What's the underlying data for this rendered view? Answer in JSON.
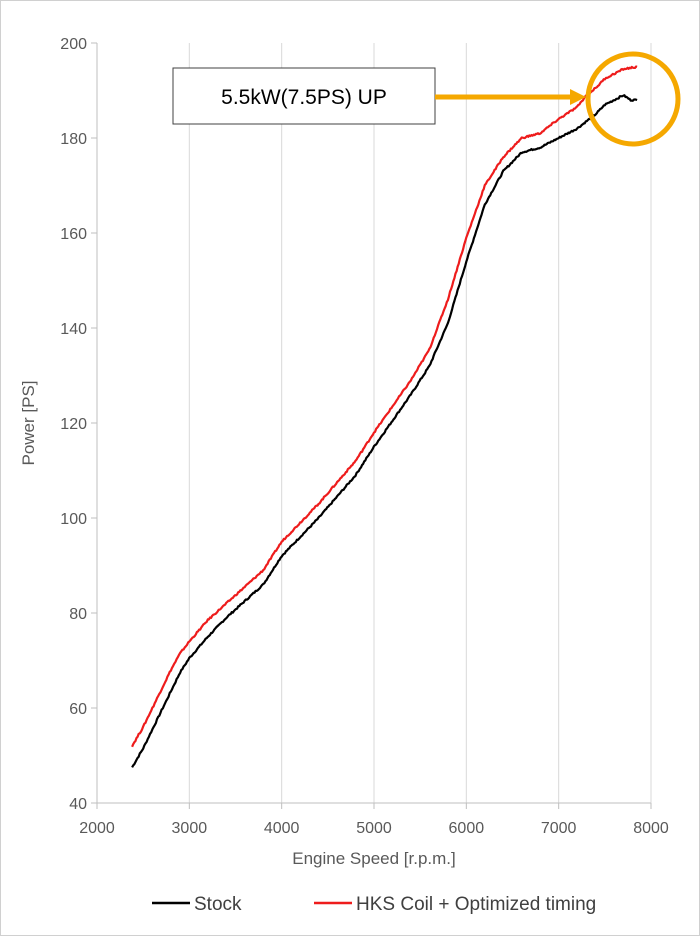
{
  "chart_data": {
    "type": "line",
    "xlabel": "Engine Speed [r.p.m.]",
    "ylabel": "Power [PS]",
    "xlim": [
      2000,
      8000
    ],
    "ylim": [
      40,
      200
    ],
    "x_ticks": [
      2000,
      3000,
      4000,
      5000,
      6000,
      7000,
      8000
    ],
    "y_ticks": [
      40,
      60,
      80,
      100,
      120,
      140,
      160,
      180,
      200
    ],
    "grid": "vertical",
    "legend_position": "bottom",
    "annotation": "5.5kW(7.5PS) UP",
    "series": [
      {
        "name": "Stock",
        "color": "#000000",
        "points": [
          [
            2380,
            47.5
          ],
          [
            2500,
            51.5
          ],
          [
            2600,
            55.5
          ],
          [
            2700,
            59.5
          ],
          [
            2800,
            63.5
          ],
          [
            2900,
            67.5
          ],
          [
            3000,
            70.5
          ],
          [
            3200,
            75.0
          ],
          [
            3400,
            79.0
          ],
          [
            3600,
            82.5
          ],
          [
            3800,
            86.0
          ],
          [
            4000,
            92.0
          ],
          [
            4200,
            96.0
          ],
          [
            4400,
            100.0
          ],
          [
            4600,
            104.5
          ],
          [
            4800,
            109.0
          ],
          [
            5000,
            115.0
          ],
          [
            5200,
            120.5
          ],
          [
            5400,
            126.0
          ],
          [
            5600,
            132.0
          ],
          [
            5800,
            141.0
          ],
          [
            6000,
            154.0
          ],
          [
            6200,
            166.0
          ],
          [
            6400,
            173.0
          ],
          [
            6600,
            177.0
          ],
          [
            6800,
            178.0
          ],
          [
            7000,
            180.0
          ],
          [
            7200,
            182.0
          ],
          [
            7400,
            185.0
          ],
          [
            7500,
            187.0
          ],
          [
            7600,
            188.0
          ],
          [
            7700,
            189.0
          ],
          [
            7780,
            188.0
          ],
          [
            7850,
            188.0
          ]
        ]
      },
      {
        "name": "HKS Coil + Optimized timing",
        "color": "#ee1c1c",
        "points": [
          [
            2380,
            52.0
          ],
          [
            2500,
            56.0
          ],
          [
            2600,
            60.0
          ],
          [
            2700,
            64.0
          ],
          [
            2800,
            68.0
          ],
          [
            2900,
            71.5
          ],
          [
            3000,
            74.0
          ],
          [
            3200,
            78.5
          ],
          [
            3400,
            82.0
          ],
          [
            3600,
            85.5
          ],
          [
            3800,
            89.0
          ],
          [
            4000,
            95.0
          ],
          [
            4200,
            99.0
          ],
          [
            4400,
            103.0
          ],
          [
            4600,
            107.5
          ],
          [
            4800,
            112.0
          ],
          [
            5000,
            118.0
          ],
          [
            5200,
            123.5
          ],
          [
            5400,
            129.0
          ],
          [
            5600,
            135.5
          ],
          [
            5800,
            146.0
          ],
          [
            6000,
            159.0
          ],
          [
            6200,
            170.0
          ],
          [
            6400,
            176.0
          ],
          [
            6600,
            180.0
          ],
          [
            6800,
            181.0
          ],
          [
            7000,
            184.0
          ],
          [
            7200,
            186.5
          ],
          [
            7300,
            189.0
          ],
          [
            7400,
            190.5
          ],
          [
            7500,
            192.5
          ],
          [
            7600,
            193.5
          ],
          [
            7700,
            194.5
          ],
          [
            7850,
            195.0
          ]
        ]
      }
    ]
  },
  "colors": {
    "annotation_arrow": "#f5a800",
    "highlight_circle": "#f5a800",
    "grid": "#d9d9d9",
    "axis": "#bfbfbf"
  }
}
